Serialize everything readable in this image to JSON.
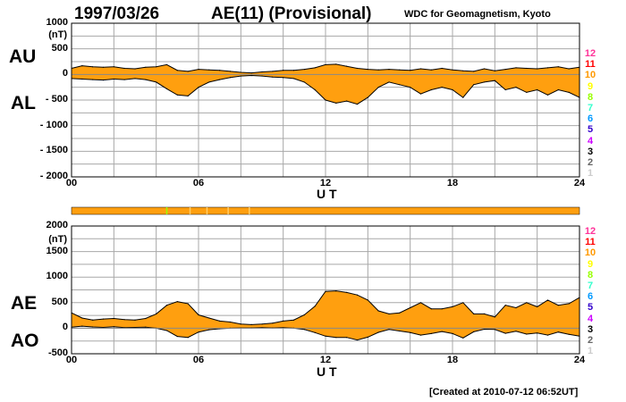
{
  "header": {
    "date": "1997/03/26",
    "title": "AE(11) (Provisional)",
    "source": "WDC for Geomagnetism, Kyoto",
    "created": "[Created at 2010-07-12 06:52UT]"
  },
  "colors": {
    "fill": "#ff9f0f",
    "grid": "#a8a8a8",
    "line": "#000000",
    "scale": [
      "#ff3399",
      "#ff0000",
      "#ff9900",
      "#ffff00",
      "#99ff00",
      "#33ffcc",
      "#0099ff",
      "#3300cc",
      "#cc00ff",
      "#000000",
      "#666666",
      "#cccccc"
    ]
  },
  "top_panel": {
    "upper_label": "AU",
    "lower_label": "AL",
    "unit": "(nT)",
    "y_ticks": [
      "1000",
      "500",
      "0",
      "- 500",
      "- 1000",
      "- 1500",
      "- 2000"
    ],
    "x_ticks": [
      "00",
      "06",
      "12",
      "18",
      "24"
    ],
    "xlabel": "U T"
  },
  "bottom_panel": {
    "upper_label": "AE",
    "lower_label": "AO",
    "unit": "(nT)",
    "y_ticks": [
      "2000",
      "1500",
      "1000",
      "500",
      "0",
      "-500"
    ],
    "x_ticks": [
      "00",
      "06",
      "12",
      "18",
      "24"
    ],
    "xlabel": "U T"
  },
  "station_scale": [
    "12",
    "11",
    "10",
    "9",
    "8",
    "7",
    "6",
    "5",
    "4",
    "3",
    "2",
    "1"
  ],
  "station_bar_markers_hours": [
    4.5,
    5.6,
    6.4,
    7.4,
    8.4
  ],
  "chart_data": [
    {
      "type": "area",
      "panel": "AU/AL",
      "xlim": [
        0,
        24
      ],
      "ylim": [
        -2000,
        1000
      ],
      "ylabel": "(nT)",
      "xlabel": "U T",
      "grid": true,
      "series": [
        {
          "name": "AU",
          "x": [
            0,
            0.5,
            1,
            1.5,
            2,
            2.5,
            3,
            3.5,
            4,
            4.5,
            5,
            5.5,
            6,
            6.5,
            7,
            7.5,
            8,
            8.5,
            9,
            9.5,
            10,
            10.5,
            11,
            11.5,
            12,
            12.5,
            13,
            13.5,
            14,
            14.5,
            15,
            15.5,
            16,
            16.5,
            17,
            17.5,
            18,
            18.5,
            19,
            19.5,
            20,
            20.5,
            21,
            21.5,
            22,
            22.5,
            23,
            23.5,
            24
          ],
          "values": [
            120,
            170,
            150,
            140,
            150,
            120,
            110,
            140,
            150,
            190,
            80,
            60,
            100,
            90,
            80,
            60,
            40,
            30,
            50,
            60,
            80,
            80,
            100,
            130,
            190,
            200,
            160,
            120,
            100,
            90,
            100,
            90,
            80,
            110,
            90,
            120,
            90,
            70,
            60,
            110,
            70,
            100,
            130,
            120,
            110,
            130,
            150,
            110,
            140
          ]
        },
        {
          "name": "AL",
          "x": [
            0,
            0.5,
            1,
            1.5,
            2,
            2.5,
            3,
            3.5,
            4,
            4.5,
            5,
            5.5,
            6,
            6.5,
            7,
            7.5,
            8,
            8.5,
            9,
            9.5,
            10,
            10.5,
            11,
            11.5,
            12,
            12.5,
            13,
            13.5,
            14,
            14.5,
            15,
            15.5,
            16,
            16.5,
            17,
            17.5,
            18,
            18.5,
            19,
            19.5,
            20,
            20.5,
            21,
            21.5,
            22,
            22.5,
            23,
            23.5,
            24
          ],
          "values": [
            -80,
            -90,
            -100,
            -110,
            -90,
            -100,
            -80,
            -100,
            -150,
            -280,
            -400,
            -420,
            -250,
            -150,
            -100,
            -60,
            -30,
            -20,
            -30,
            -50,
            -60,
            -80,
            -150,
            -300,
            -500,
            -560,
            -520,
            -580,
            -450,
            -250,
            -150,
            -200,
            -250,
            -380,
            -300,
            -250,
            -300,
            -450,
            -200,
            -150,
            -120,
            -300,
            -250,
            -350,
            -300,
            -400,
            -300,
            -350,
            -450
          ]
        }
      ]
    },
    {
      "type": "area",
      "panel": "AE/AO",
      "xlim": [
        0,
        24
      ],
      "ylim": [
        -500,
        2000
      ],
      "ylabel": "(nT)",
      "xlabel": "U T",
      "grid": true,
      "series": [
        {
          "name": "AE",
          "x": [
            0,
            0.5,
            1,
            1.5,
            2,
            2.5,
            3,
            3.5,
            4,
            4.5,
            5,
            5.5,
            6,
            6.5,
            7,
            7.5,
            8,
            8.5,
            9,
            9.5,
            10,
            10.5,
            11,
            11.5,
            12,
            12.5,
            13,
            13.5,
            14,
            14.5,
            15,
            15.5,
            16,
            16.5,
            17,
            17.5,
            18,
            18.5,
            19,
            19.5,
            20,
            20.5,
            21,
            21.5,
            22,
            22.5,
            23,
            23.5,
            24
          ],
          "values": [
            300,
            200,
            160,
            180,
            190,
            170,
            160,
            190,
            280,
            450,
            520,
            480,
            260,
            200,
            140,
            120,
            80,
            70,
            80,
            100,
            140,
            160,
            260,
            430,
            720,
            730,
            700,
            650,
            550,
            340,
            280,
            300,
            400,
            500,
            380,
            380,
            420,
            500,
            280,
            280,
            220,
            450,
            400,
            500,
            420,
            550,
            450,
            480,
            600
          ]
        },
        {
          "name": "AO",
          "x": [
            0,
            0.5,
            1,
            1.5,
            2,
            2.5,
            3,
            3.5,
            4,
            4.5,
            5,
            5.5,
            6,
            6.5,
            7,
            7.5,
            8,
            8.5,
            9,
            9.5,
            10,
            10.5,
            11,
            11.5,
            12,
            12.5,
            13,
            13.5,
            14,
            14.5,
            15,
            15.5,
            16,
            16.5,
            17,
            17.5,
            18,
            18.5,
            19,
            19.5,
            20,
            20.5,
            21,
            21.5,
            22,
            22.5,
            23,
            23.5,
            24
          ],
          "values": [
            20,
            40,
            25,
            15,
            30,
            10,
            15,
            20,
            0,
            -45,
            -160,
            -180,
            -75,
            -30,
            -10,
            0,
            5,
            5,
            10,
            5,
            10,
            0,
            -25,
            -85,
            -155,
            -180,
            -180,
            -230,
            -175,
            -80,
            -25,
            -55,
            -85,
            -135,
            -105,
            -65,
            -105,
            -190,
            -70,
            -20,
            -25,
            -100,
            -60,
            -115,
            -95,
            -135,
            -75,
            -120,
            -155
          ]
        }
      ]
    }
  ]
}
